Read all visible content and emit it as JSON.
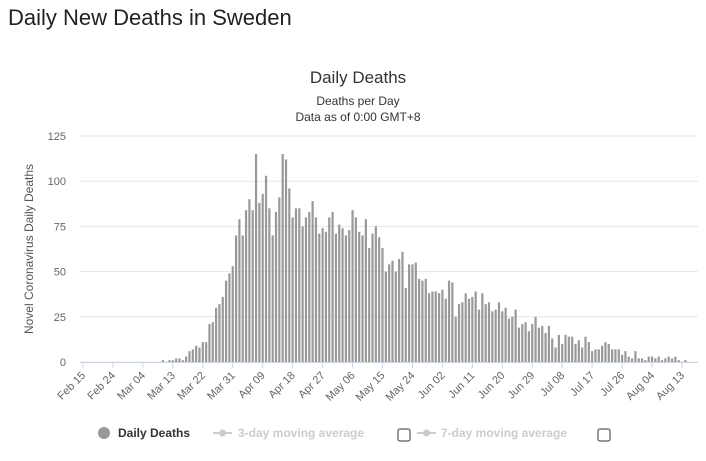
{
  "header": {
    "title": "Daily New Deaths in Sweden"
  },
  "chart_data": {
    "type": "bar",
    "title": "Daily Deaths",
    "subtitle": "Deaths per Day",
    "note": "Data as of 0:00 GMT+8",
    "y_label": "Novel Coronavirus Daily Deaths",
    "categories": [
      "Feb 15",
      null,
      null,
      null,
      null,
      null,
      null,
      null,
      null,
      "Feb 24",
      null,
      null,
      null,
      null,
      null,
      null,
      null,
      null,
      "Mar 04",
      null,
      null,
      null,
      null,
      null,
      null,
      null,
      null,
      "Mar 13",
      null,
      null,
      null,
      null,
      null,
      null,
      null,
      null,
      "Mar 22",
      null,
      null,
      null,
      null,
      null,
      null,
      null,
      null,
      "Mar 31",
      null,
      null,
      null,
      null,
      null,
      null,
      null,
      null,
      "Apr 09",
      null,
      null,
      null,
      null,
      null,
      null,
      null,
      null,
      "Apr 18",
      null,
      null,
      null,
      null,
      null,
      null,
      null,
      null,
      "Apr 27",
      null,
      null,
      null,
      null,
      null,
      null,
      null,
      null,
      "May 06",
      null,
      null,
      null,
      null,
      null,
      null,
      null,
      null,
      "May 15",
      null,
      null,
      null,
      null,
      null,
      null,
      null,
      null,
      "May 24",
      null,
      null,
      null,
      null,
      null,
      null,
      null,
      null,
      "Jun 02",
      null,
      null,
      null,
      null,
      null,
      null,
      null,
      null,
      "Jun 11",
      null,
      null,
      null,
      null,
      null,
      null,
      null,
      null,
      "Jun 20",
      null,
      null,
      null,
      null,
      null,
      null,
      null,
      null,
      "Jun 29",
      null,
      null,
      null,
      null,
      null,
      null,
      null,
      null,
      "Jul 08",
      null,
      null,
      null,
      null,
      null,
      null,
      null,
      null,
      "Jul 17",
      null,
      null,
      null,
      null,
      null,
      null,
      null,
      null,
      "Jul 26",
      null,
      null,
      null,
      null,
      null,
      null,
      null,
      null,
      "Aug 04",
      null,
      null,
      null,
      null,
      null,
      null,
      null,
      null,
      "Aug 13",
      null
    ],
    "series": [
      {
        "name": "Daily Deaths",
        "color": "#999999",
        "values": [
          0,
          0,
          0,
          0,
          0,
          0,
          0,
          0,
          0,
          0,
          0,
          0,
          0,
          0,
          0,
          0,
          0,
          0,
          0,
          0,
          0,
          0,
          0,
          0,
          1,
          0,
          1,
          1,
          2,
          2,
          1,
          3,
          6,
          7,
          9,
          8,
          11,
          11,
          21,
          22,
          30,
          32,
          36,
          45,
          49,
          53,
          70,
          79,
          70,
          84,
          90,
          84,
          115,
          88,
          93,
          103,
          85,
          70,
          83,
          91,
          115,
          112,
          96,
          80,
          85,
          85,
          75,
          80,
          83,
          89,
          80,
          71,
          74,
          72,
          80,
          83,
          71,
          76,
          74,
          70,
          73,
          84,
          80,
          72,
          70,
          79,
          63,
          71,
          75,
          69,
          63,
          50,
          54,
          56,
          50,
          57,
          61,
          41,
          54,
          54,
          55,
          46,
          45,
          46,
          38,
          39,
          39,
          38,
          40,
          35,
          45,
          44,
          25,
          32,
          33,
          38,
          35,
          36,
          39,
          29,
          38,
          32,
          33,
          28,
          29,
          33,
          28,
          30,
          24,
          25,
          29,
          19,
          21,
          22,
          17,
          21,
          25,
          19,
          20,
          16,
          20,
          13,
          8,
          15,
          10,
          15,
          14,
          14,
          10,
          12,
          8,
          14,
          11,
          6,
          7,
          7,
          9,
          11,
          10,
          7,
          7,
          7,
          4,
          6,
          3,
          2,
          6,
          2,
          2,
          1,
          3,
          3,
          2,
          3,
          1,
          2,
          3,
          2,
          3,
          1,
          0,
          1
        ]
      }
    ],
    "inactive_legend": [
      "3-day moving average",
      "7-day moving average"
    ],
    "ylim": [
      0,
      125
    ],
    "yticks": [
      0,
      25,
      50,
      75,
      100,
      125
    ],
    "grid": true
  }
}
